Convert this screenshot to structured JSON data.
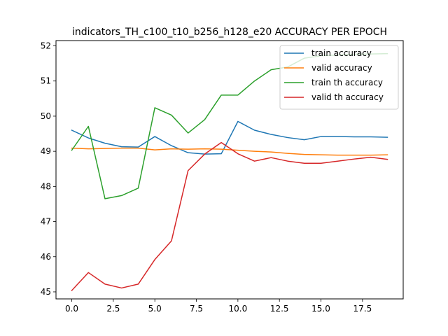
{
  "chart_data": {
    "type": "line",
    "title": "indicators_TH_c100_t10_b256_h128_e20 ACCURACY PER EPOCH",
    "xlabel": "",
    "ylabel": "",
    "xlim": [
      -0.95,
      19.95
    ],
    "ylim": [
      44.8,
      52.15
    ],
    "xticks": [
      0.0,
      2.5,
      5.0,
      7.5,
      10.0,
      12.5,
      15.0,
      17.5
    ],
    "xtick_labels": [
      "0.0",
      "2.5",
      "5.0",
      "7.5",
      "10.0",
      "12.5",
      "15.0",
      "17.5"
    ],
    "yticks": [
      45,
      46,
      47,
      48,
      49,
      50,
      51,
      52
    ],
    "ytick_labels": [
      "45",
      "46",
      "47",
      "48",
      "49",
      "50",
      "51",
      "52"
    ],
    "grid": false,
    "legend_position": "top-right",
    "x": [
      0,
      1,
      2,
      3,
      4,
      5,
      6,
      7,
      8,
      9,
      10,
      11,
      12,
      13,
      14,
      15,
      16,
      17,
      18,
      19
    ],
    "series": [
      {
        "name": "train accuracy",
        "color": "#1f77b4",
        "values": [
          49.6,
          49.38,
          49.23,
          49.13,
          49.12,
          49.42,
          49.16,
          48.96,
          48.92,
          48.93,
          49.85,
          49.6,
          49.48,
          49.39,
          49.33,
          49.42,
          49.42,
          49.41,
          49.41,
          49.4
        ]
      },
      {
        "name": "valid accuracy",
        "color": "#ff7f0e",
        "values": [
          49.09,
          49.07,
          49.08,
          49.09,
          49.09,
          49.04,
          49.07,
          49.06,
          49.07,
          49.06,
          49.03,
          49.0,
          48.98,
          48.94,
          48.91,
          48.9,
          48.89,
          48.89,
          48.89,
          48.9
        ]
      },
      {
        "name": "train th accuracy",
        "color": "#2ca02c",
        "values": [
          49.03,
          49.71,
          47.65,
          47.74,
          47.95,
          50.24,
          50.03,
          49.52,
          49.9,
          50.6,
          50.6,
          51.0,
          51.32,
          51.4,
          51.65,
          51.72,
          51.74,
          51.76,
          51.77,
          51.78
        ]
      },
      {
        "name": "valid th accuracy",
        "color": "#d62728",
        "values": [
          45.04,
          45.55,
          45.22,
          45.11,
          45.22,
          45.92,
          46.45,
          48.45,
          48.92,
          49.25,
          48.93,
          48.72,
          48.82,
          48.72,
          48.66,
          48.66,
          48.72,
          48.78,
          48.83,
          48.77
        ]
      }
    ]
  }
}
